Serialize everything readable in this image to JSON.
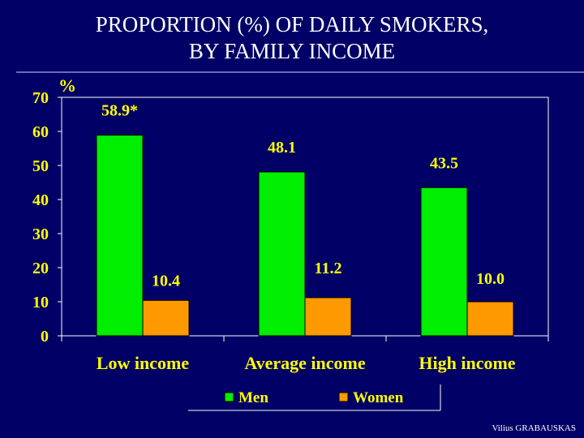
{
  "title_line1": "PROPORTION (%) OF DAILY SMOKERS,",
  "title_line2": "BY FAMILY INCOME",
  "credit": "Vilius GRABAUSKAS",
  "colors": {
    "background": "#000066",
    "men": "#00ee00",
    "women": "#ff9900",
    "text": "#ffff00",
    "axis": "#ffffff"
  },
  "chart_data": {
    "type": "bar",
    "ylabel": "%",
    "ylim": [
      0,
      70
    ],
    "yticks": [
      0,
      10,
      20,
      30,
      40,
      50,
      60,
      70
    ],
    "categories": [
      "Low income",
      "Average income",
      "High income"
    ],
    "series": [
      {
        "name": "Men",
        "values": [
          58.9,
          48.1,
          43.5
        ],
        "labels": [
          "58.9*",
          "48.1",
          "43.5"
        ]
      },
      {
        "name": "Women",
        "values": [
          10.4,
          11.2,
          10.0
        ],
        "labels": [
          "10.4",
          "11.2",
          "10.0"
        ]
      }
    ],
    "legend_position": "bottom",
    "grid": false
  }
}
